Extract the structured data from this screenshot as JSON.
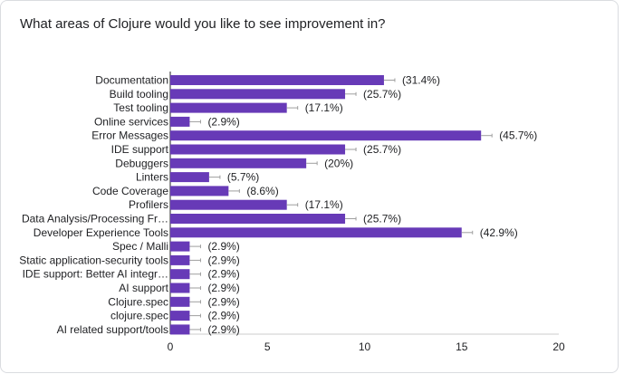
{
  "question": "What areas of Clojure would you like to see improvement in?",
  "colors": {
    "bar": "#673ab7",
    "text": "#202124",
    "axis": "#202124",
    "grid": "#e0e0e0",
    "border": "#dadce0"
  },
  "chart_data": {
    "type": "bar",
    "orientation": "horizontal",
    "categories": [
      "Documentation",
      "Build tooling",
      "Test tooling",
      "Online services",
      "Error Messages",
      "IDE support",
      "Debuggers",
      "Linters",
      "Code Coverage",
      "Profilers",
      "Data Analysis/Processing Fr…",
      "Developer Experience Tools",
      "Spec / Malli",
      "Static application-security tools",
      "IDE support: Better AI integr…",
      "AI support",
      "Clojure.spec",
      "clojure.spec",
      "AI related support/tools"
    ],
    "values": [
      11,
      9,
      6,
      1,
      16,
      9,
      7,
      2,
      3,
      6,
      9,
      15,
      1,
      1,
      1,
      1,
      1,
      1,
      1
    ],
    "data_labels": [
      "(31.4%)",
      "(25.7%)",
      "(17.1%)",
      "(2.9%)",
      "(45.7%)",
      "(25.7%)",
      "(20%)",
      "(5.7%)",
      "(8.6%)",
      "(17.1%)",
      "(25.7%)",
      "(42.9%)",
      "(2.9%)",
      "(2.9%)",
      "(2.9%)",
      "(2.9%)",
      "(2.9%)",
      "(2.9%)",
      "(2.9%)"
    ],
    "x_ticks": [
      "0",
      "5",
      "10",
      "15",
      "20"
    ],
    "xlim": [
      0,
      20
    ],
    "grid": false
  }
}
